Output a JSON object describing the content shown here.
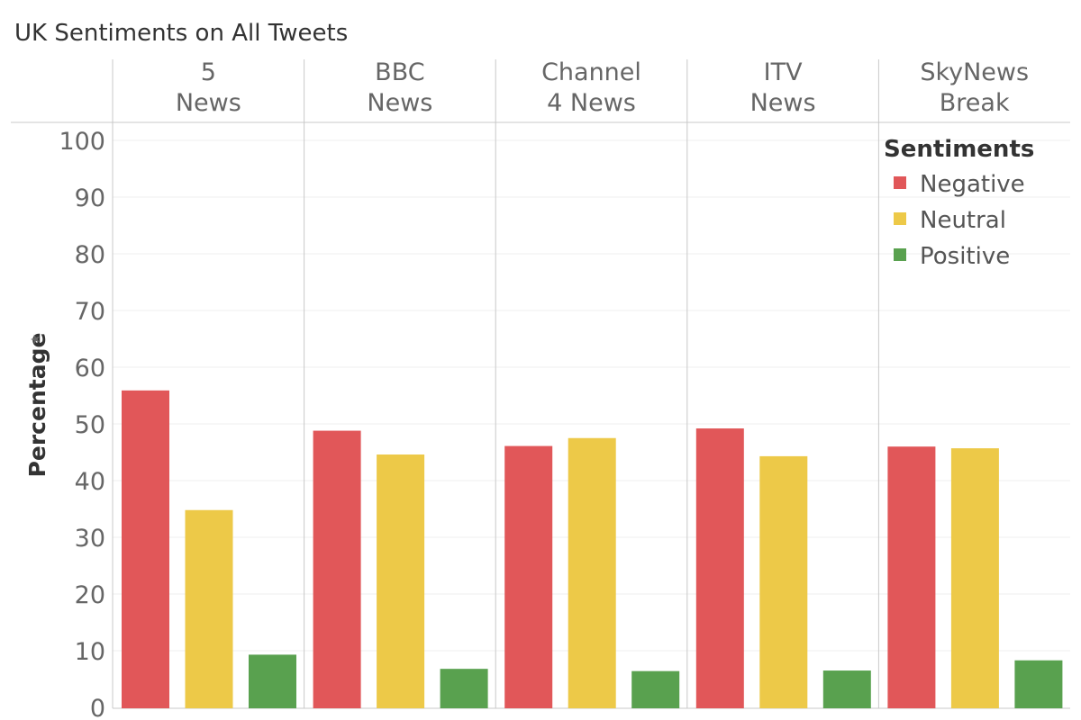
{
  "title": "UK Sentiments on All Tweets",
  "chart_data": {
    "type": "bar",
    "title": "UK Sentiments on All Tweets",
    "ylabel": "Percentage",
    "xlabel": "",
    "ylim": [
      0,
      100
    ],
    "yticks": [
      0,
      10,
      20,
      30,
      40,
      50,
      60,
      70,
      80,
      90,
      100
    ],
    "grid": true,
    "legend_position": "top-right",
    "legend_title": "Sentiments",
    "categories": [
      [
        "5",
        "News"
      ],
      [
        "BBC",
        "News"
      ],
      [
        "Channel",
        "4 News"
      ],
      [
        "ITV",
        "News"
      ],
      [
        "SkyNews",
        "Break"
      ]
    ],
    "series": [
      {
        "name": "Negative",
        "color": "#e15759",
        "values": [
          55.9,
          48.8,
          46.1,
          49.2,
          46.0
        ]
      },
      {
        "name": "Neutral",
        "color": "#edc948",
        "values": [
          34.8,
          44.6,
          47.5,
          44.3,
          45.7
        ]
      },
      {
        "name": "Positive",
        "color": "#59a14f",
        "values": [
          9.3,
          6.8,
          6.4,
          6.5,
          8.3
        ]
      }
    ]
  }
}
